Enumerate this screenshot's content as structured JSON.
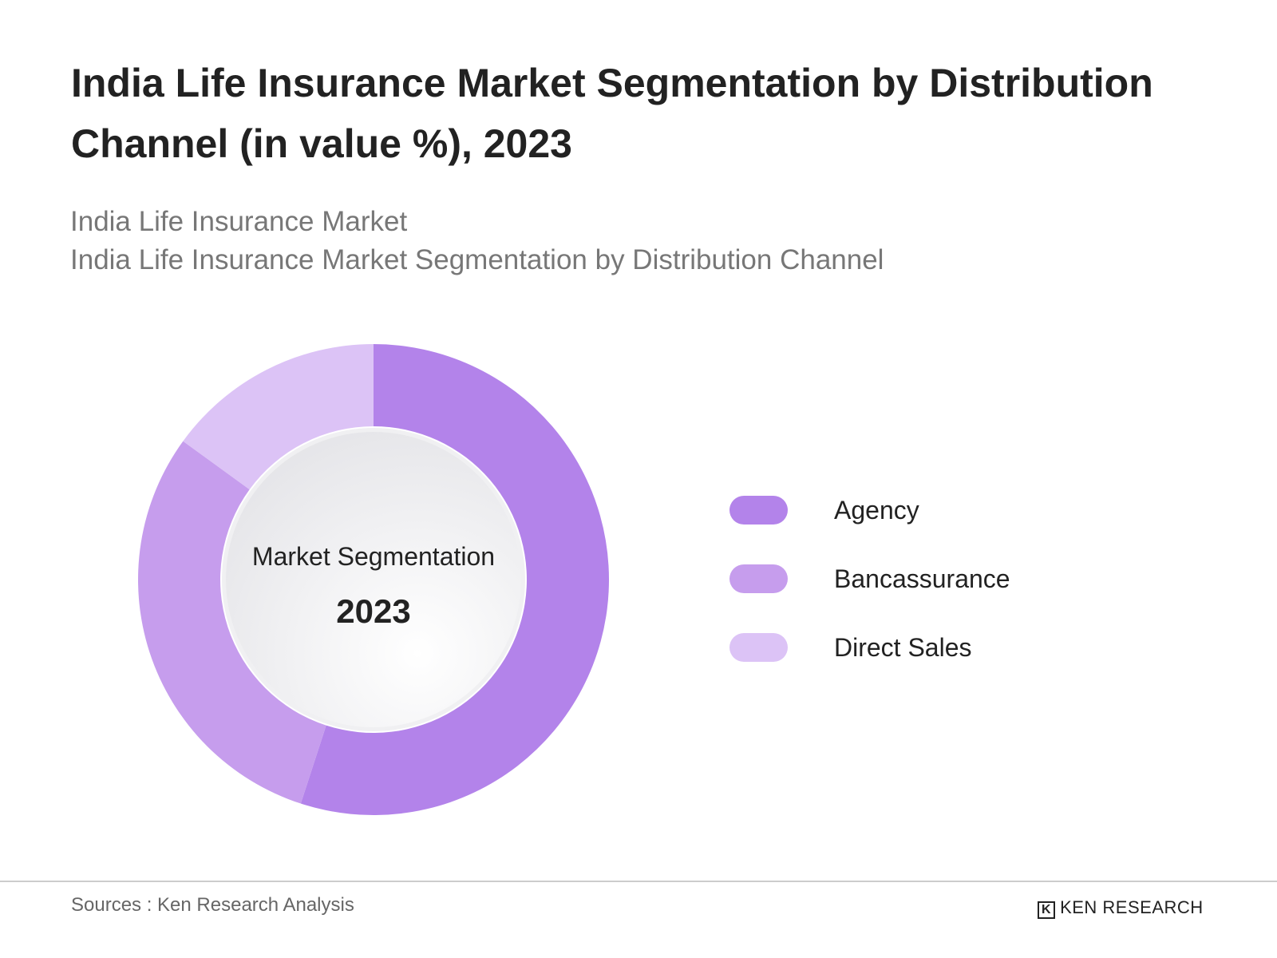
{
  "chart_data": {
    "type": "donut",
    "title": "India Life Insurance Market Segmentation by Distribution Channel (in value %), 2023",
    "subtitles": [
      "India Life Insurance Market",
      "India Life Insurance Market Segmentation by Distribution Channel"
    ],
    "center_label": "Market Segmentation",
    "center_year": "2023",
    "categories": [
      "Agency",
      "Bancassurance",
      "Direct Sales"
    ],
    "values": [
      55,
      30,
      15
    ],
    "colors": [
      "#b383ea",
      "#c69ded",
      "#dcc3f6"
    ],
    "source": "Sources : Ken Research Analysis",
    "brand": "KEN RESEARCH"
  }
}
